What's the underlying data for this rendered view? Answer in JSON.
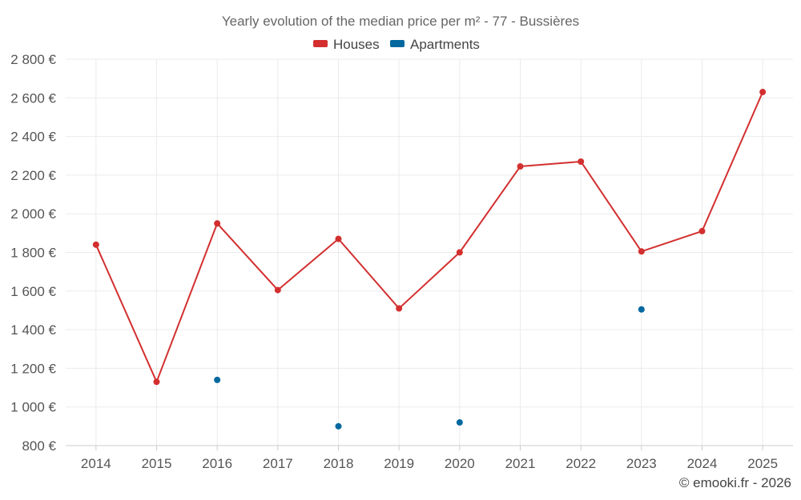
{
  "chart_data": {
    "type": "line",
    "title": "Yearly evolution of the median price per m² - 77 - Bussières",
    "categories": [
      "2014",
      "2015",
      "2016",
      "2017",
      "2018",
      "2019",
      "2020",
      "2021",
      "2022",
      "2023",
      "2024",
      "2025"
    ],
    "series": [
      {
        "name": "Houses",
        "color": "#d32f2f",
        "values": [
          1840,
          1130,
          1950,
          1605,
          1870,
          1510,
          1800,
          2245,
          2270,
          1805,
          1910,
          2630
        ]
      },
      {
        "name": "Apartments",
        "color": "#03689e",
        "values": [
          null,
          null,
          1140,
          null,
          900,
          null,
          920,
          null,
          null,
          1505,
          null,
          null
        ]
      }
    ],
    "ylim": [
      800,
      2800
    ],
    "yticks": [
      800,
      1000,
      1200,
      1400,
      1600,
      1800,
      2000,
      2200,
      2400,
      2600,
      2800
    ],
    "ytick_labels": [
      "800 €",
      "1 000 €",
      "1 200 €",
      "1 400 €",
      "1 600 €",
      "1 800 €",
      "2 000 €",
      "2 200 €",
      "2 400 €",
      "2 600 €",
      "2 800 €"
    ],
    "grid": true,
    "legend_position": "top-center"
  },
  "credit": "© emooki.fr - 2026"
}
